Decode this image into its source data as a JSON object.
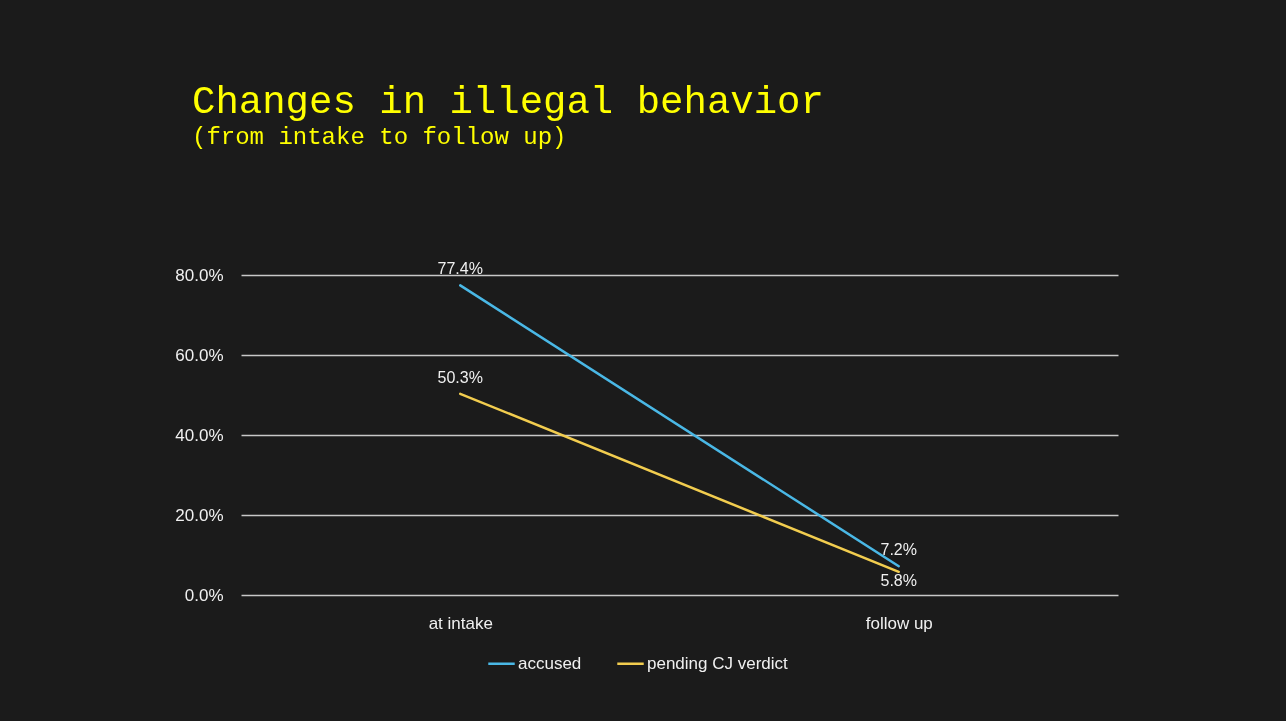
{
  "chart_data": {
    "type": "line",
    "title": "Changes in illegal behavior",
    "subtitle": "(from intake to follow up)",
    "categories": [
      "at intake",
      "follow up"
    ],
    "series": [
      {
        "name": "accused",
        "color": "#4ab8e6",
        "values": [
          77.4,
          7.2
        ],
        "value_labels": [
          "77.4%",
          "7.2%"
        ]
      },
      {
        "name": "pending CJ verdict",
        "color": "#f2cd4f",
        "values": [
          50.3,
          5.8
        ],
        "value_labels": [
          "50.3%",
          "5.8%"
        ]
      }
    ],
    "ylim": [
      0,
      80
    ],
    "yticks": [
      {
        "value": 0,
        "label": "0.0%"
      },
      {
        "value": 20,
        "label": "20.0%"
      },
      {
        "value": 40,
        "label": "40.0%"
      },
      {
        "value": 60,
        "label": "60.0%"
      },
      {
        "value": 80,
        "label": "80.0%"
      }
    ],
    "grid": "y",
    "legend": "bottom"
  }
}
